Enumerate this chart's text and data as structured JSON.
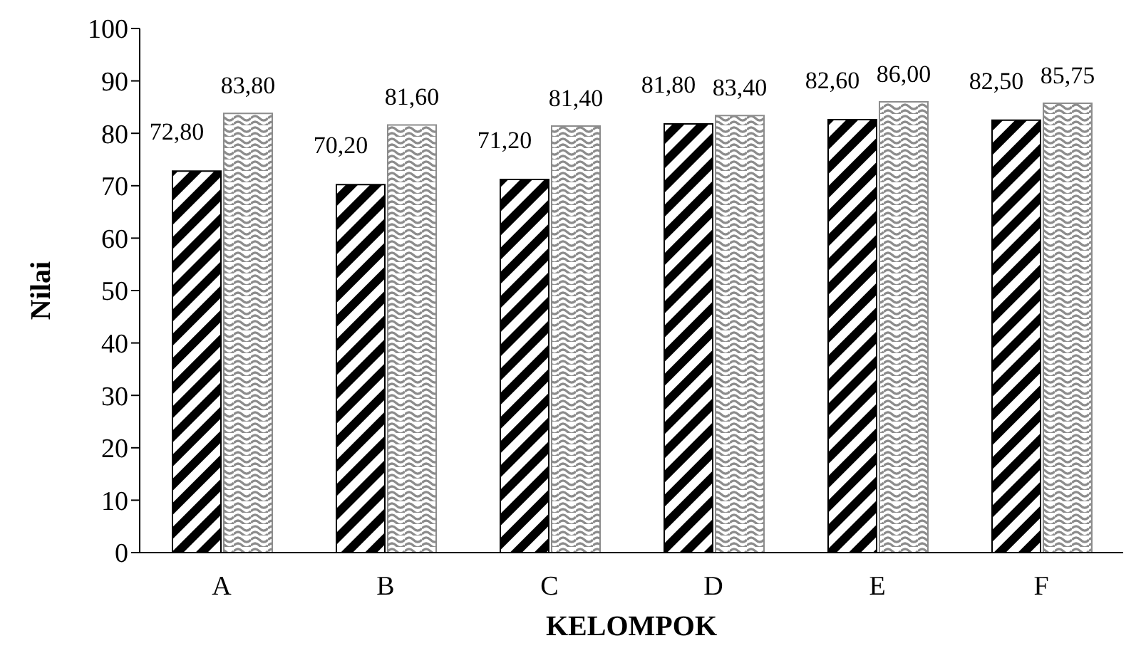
{
  "chart_data": {
    "type": "bar",
    "xlabel": "KELOMPOK",
    "ylabel": "Nilai",
    "categories": [
      "A",
      "B",
      "C",
      "D",
      "E",
      "F"
    ],
    "series": [
      {
        "color": "#000000",
        "values": [
          72.8,
          70.2,
          71.2,
          81.8,
          82.6,
          82.5
        ],
        "value_labels": [
          "72,80",
          "70,20",
          "71,20",
          "81,80",
          "82,60",
          "82,50"
        ]
      },
      {
        "color": "#8c8c8c",
        "values": [
          83.8,
          81.6,
          81.4,
          83.4,
          86.0,
          85.75
        ],
        "value_labels": [
          "83,80",
          "81,60",
          "81,40",
          "83,40",
          "86,00",
          "85,75"
        ]
      }
    ],
    "ylim": [
      0,
      100
    ],
    "yticks": [
      0,
      10,
      20,
      30,
      40,
      50,
      60,
      70,
      80,
      90,
      100
    ],
    "grid": false,
    "legend": false
  }
}
